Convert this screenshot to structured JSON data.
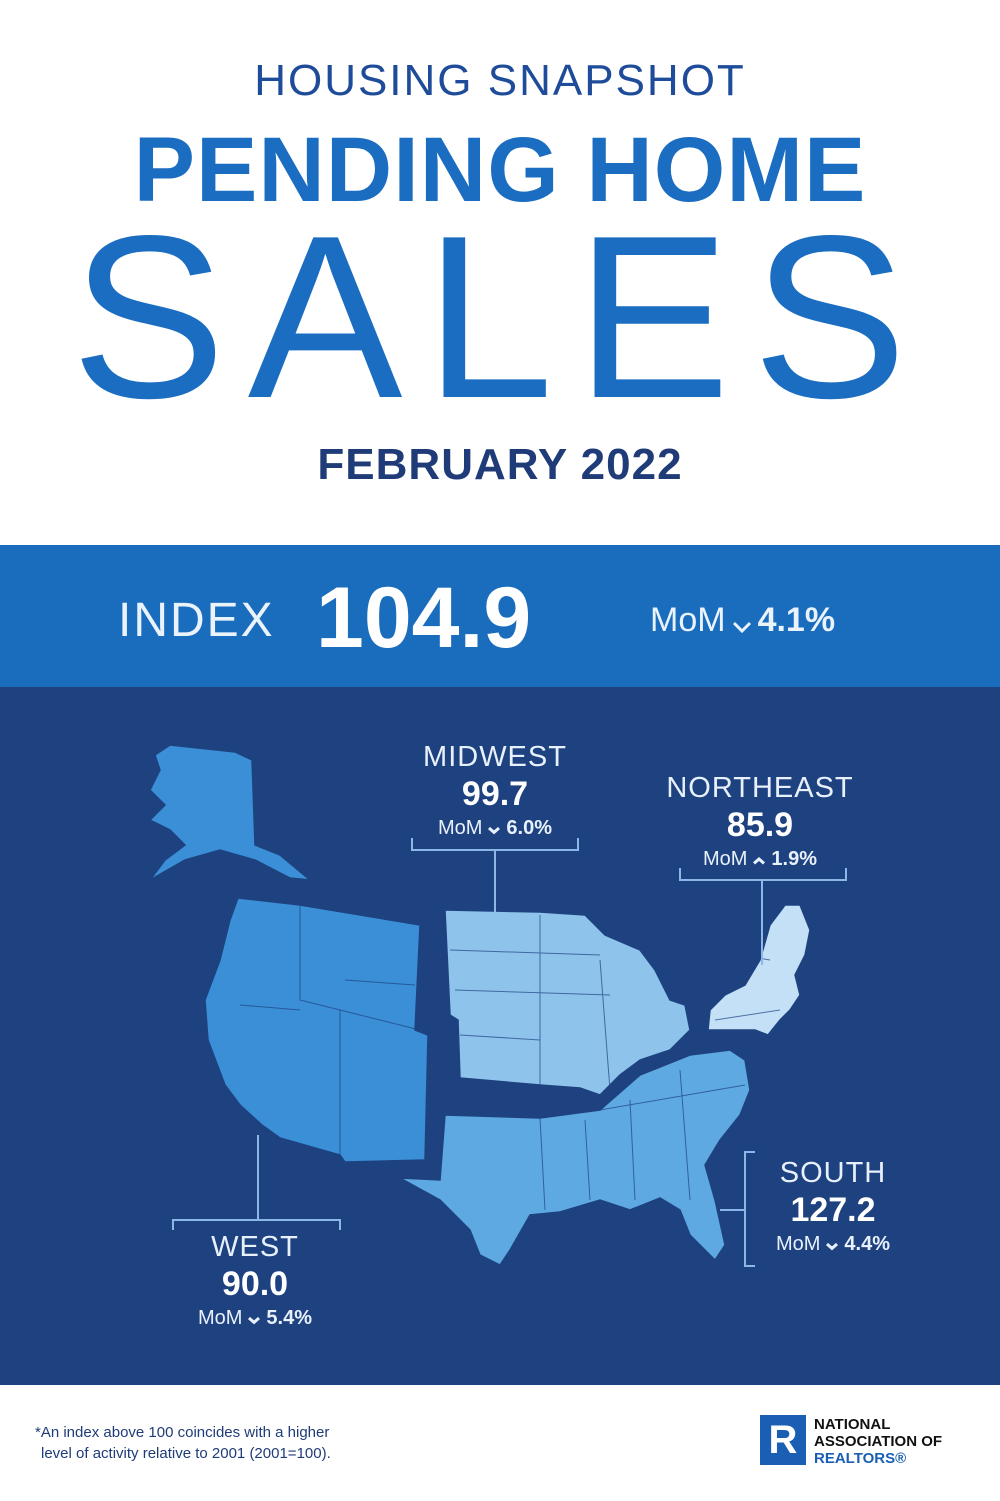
{
  "header": {
    "kicker": "HOUSING SNAPSHOT",
    "title": "PENDING HOME",
    "title_big": "SALES",
    "period": "FEBRUARY 2022"
  },
  "index": {
    "label": "INDEX",
    "value": "104.9",
    "change_label": "MoM",
    "direction": "down",
    "change": "4.1%"
  },
  "regions": [
    {
      "name": "MIDWEST",
      "value": "99.7",
      "change_label": "MoM",
      "direction": "down",
      "change": "6.0%"
    },
    {
      "name": "NORTHEAST",
      "value": "85.9",
      "change_label": "MoM",
      "direction": "up",
      "change": "1.9%"
    },
    {
      "name": "SOUTH",
      "value": "127.2",
      "change_label": "MoM",
      "direction": "down",
      "change": "4.4%"
    },
    {
      "name": "WEST",
      "value": "90.0",
      "change_label": "MoM",
      "direction": "down",
      "change": "5.4%"
    }
  ],
  "footnote": [
    "*An index above 100 coincides with a higher",
    "level of activity relative to 2001 (2001=100)."
  ],
  "logo": {
    "mark": "R",
    "lines": [
      "NATIONAL",
      "ASSOCIATION OF",
      "REALTORS®"
    ]
  }
}
